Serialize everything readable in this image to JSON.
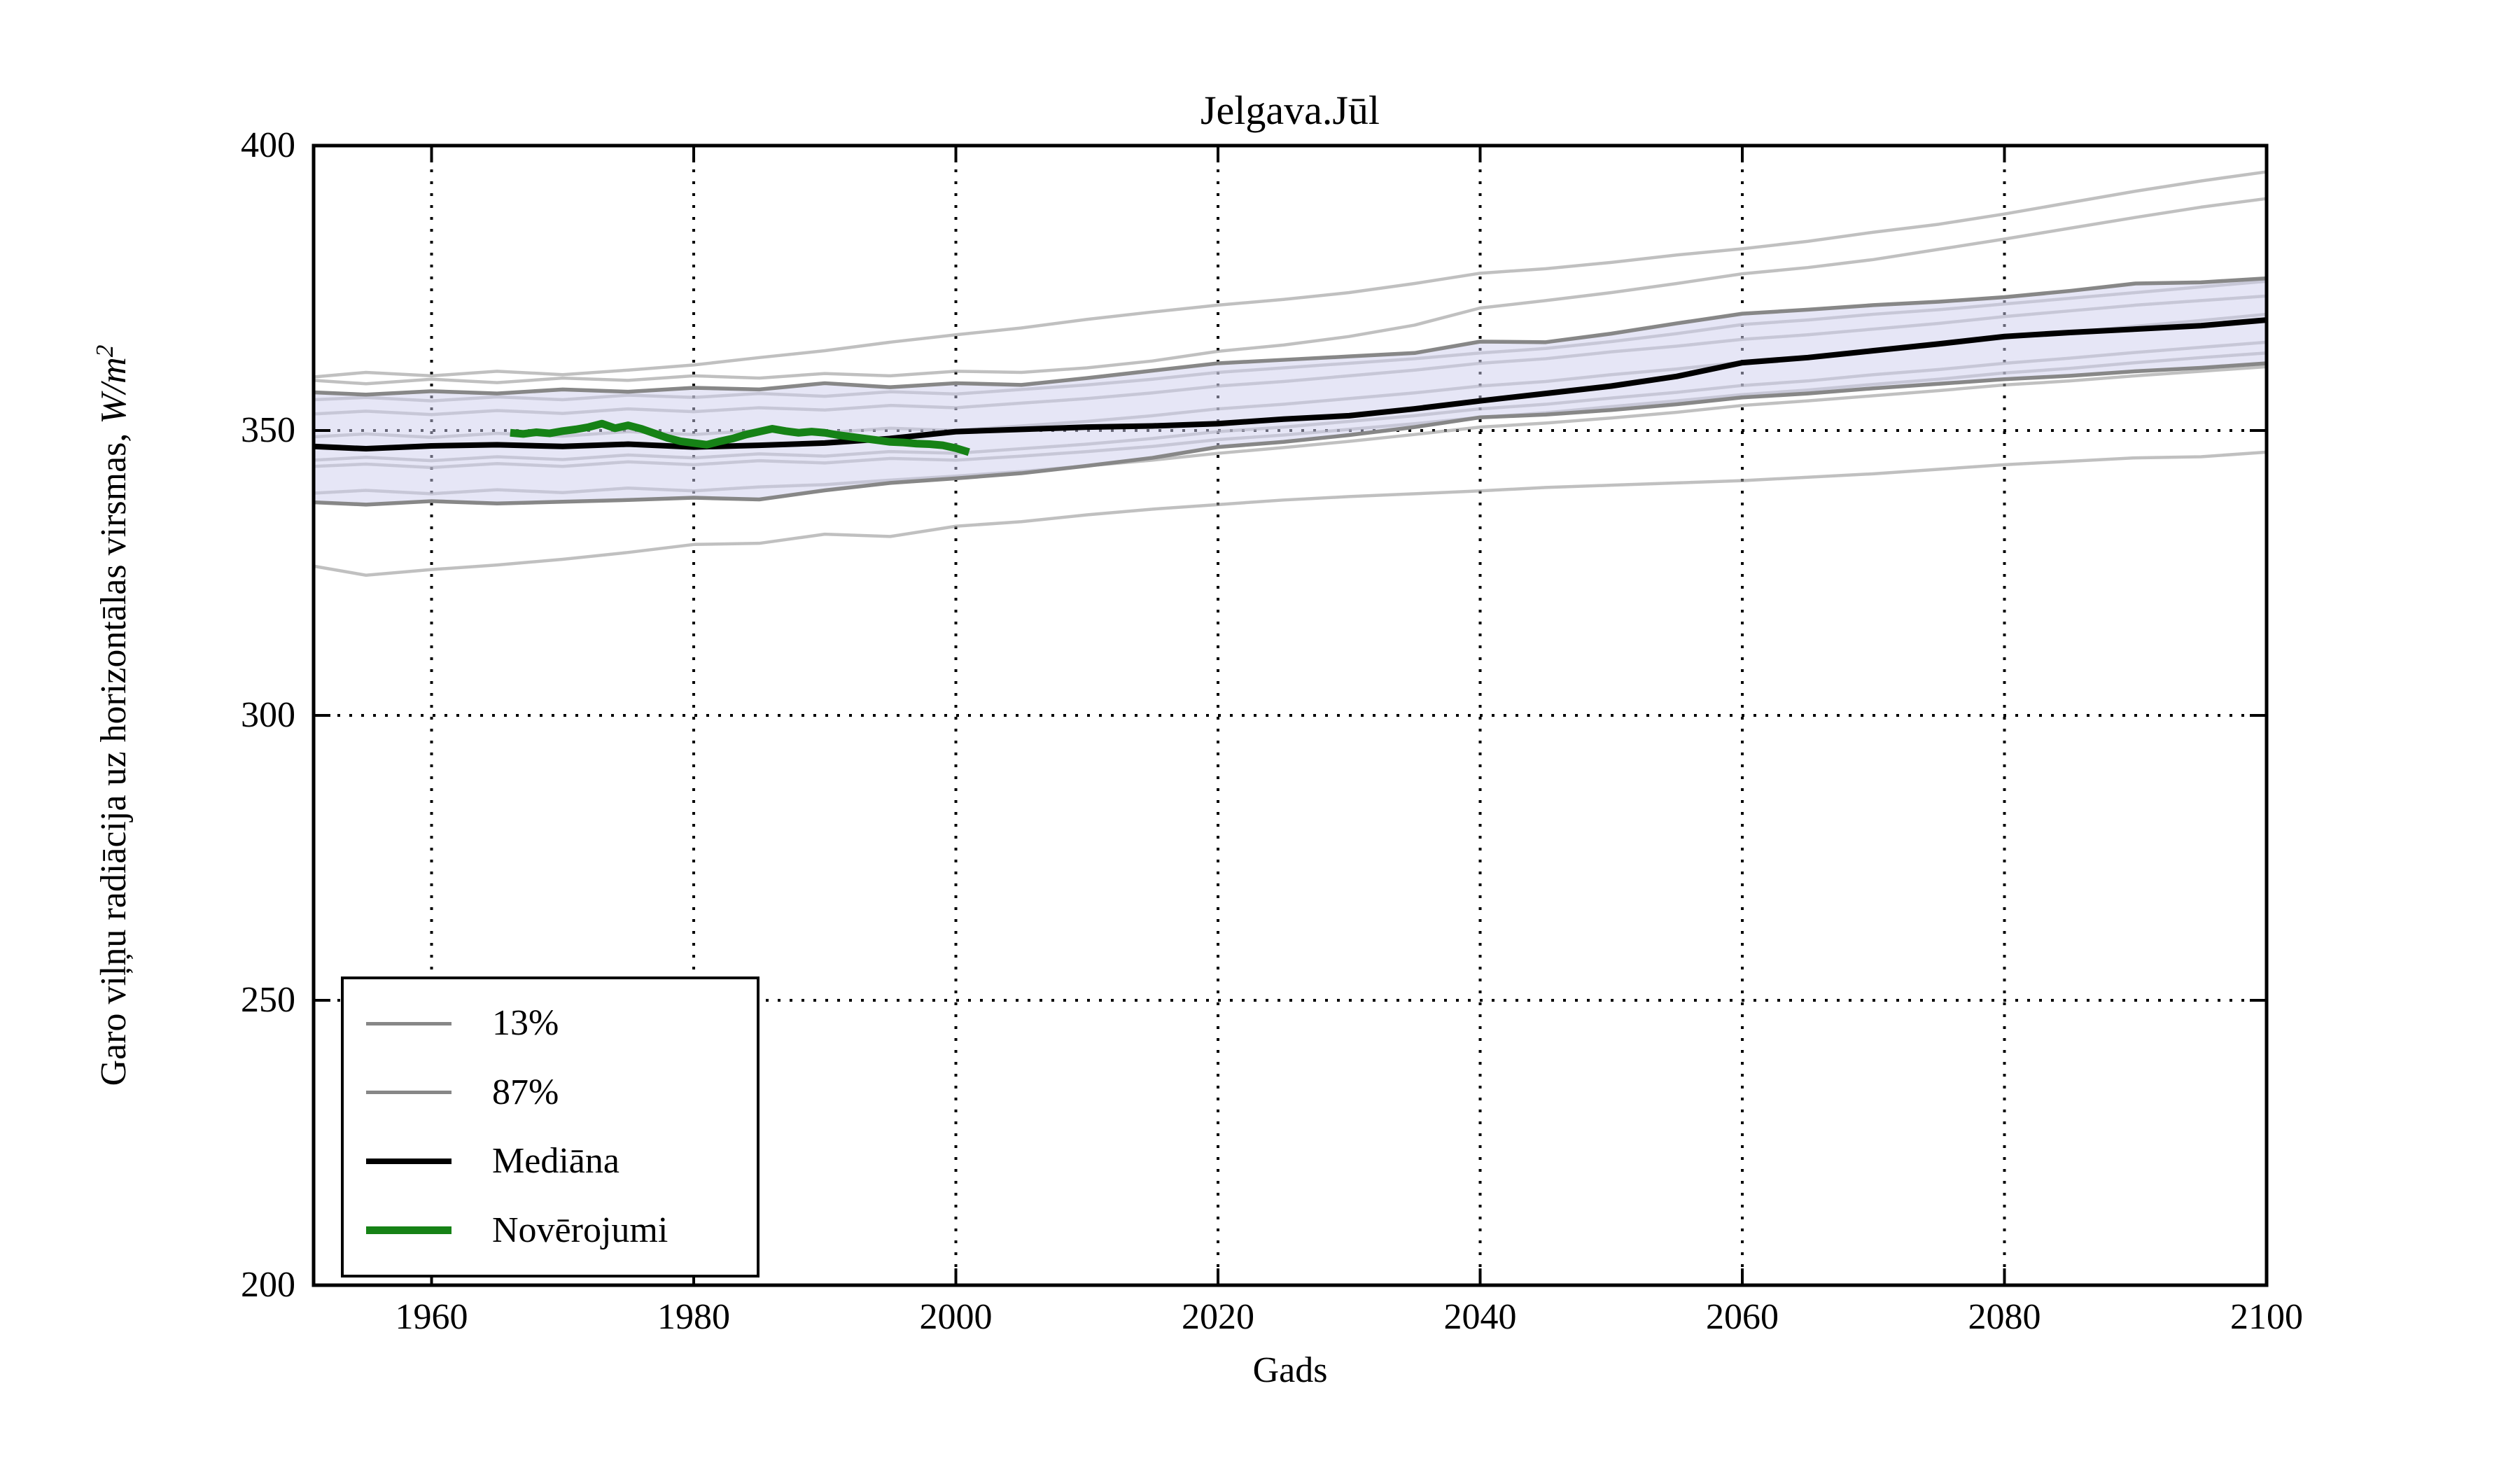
{
  "title": "Jelgava.Jūl",
  "axes": {
    "xlabel": "Gads",
    "ylabel_prefix": "Garo viļņu radiācija uz horizontālas virsmas, ",
    "ylabel_unit": "W/m",
    "ylabel_exp": "2",
    "x_ticks": [
      1960,
      1980,
      2000,
      2020,
      2040,
      2060,
      2080,
      2100
    ],
    "y_ticks": [
      200,
      250,
      300,
      350,
      400
    ],
    "xlim": [
      1951,
      2100
    ],
    "ylim": [
      200,
      400
    ],
    "grid": "dotted"
  },
  "legend": {
    "items": [
      {
        "label": "13%",
        "color": "#878787",
        "width": 5
      },
      {
        "label": "87%",
        "color": "#878787",
        "width": 5
      },
      {
        "label": "Mediāna",
        "color": "#000000",
        "width": 8
      },
      {
        "label": "Novērojumi",
        "color": "#168216",
        "width": 11
      }
    ]
  },
  "chart_data": {
    "type": "line",
    "title": "Jelgava.Jūl",
    "xlabel": "Gads",
    "ylabel": "Garo viļņu radiācija uz horizontālas virsmas, W/m2",
    "x": [
      1951,
      1955,
      1960,
      1965,
      1970,
      1975,
      1980,
      1985,
      1990,
      1995,
      2000,
      2005,
      2010,
      2015,
      2020,
      2025,
      2030,
      2035,
      2040,
      2045,
      2050,
      2055,
      2060,
      2065,
      2070,
      2075,
      2080,
      2085,
      2090,
      2095,
      2100
    ],
    "percentile_87": {
      "label": "87%",
      "color": "#878787",
      "values": [
        356.7,
        356.3,
        356.9,
        356.5,
        357.2,
        356.8,
        357.5,
        357.2,
        358.3,
        357.6,
        358.3,
        358.0,
        359.2,
        360.5,
        361.8,
        362.4,
        363.0,
        363.6,
        365.6,
        365.5,
        367.0,
        368.8,
        370.5,
        371.2,
        372.0,
        372.6,
        373.4,
        374.5,
        375.8,
        376.0,
        376.7
      ]
    },
    "percentile_13": {
      "label": "13%",
      "color": "#878787",
      "values": [
        337.4,
        337.0,
        337.6,
        337.2,
        337.5,
        337.8,
        338.2,
        337.9,
        339.5,
        340.8,
        341.6,
        342.5,
        343.8,
        345.2,
        347.1,
        348.0,
        349.2,
        350.6,
        352.3,
        352.8,
        353.6,
        354.6,
        355.8,
        356.5,
        357.4,
        358.2,
        359.0,
        359.6,
        360.4,
        361.0,
        361.8
      ]
    },
    "median": {
      "label": "Mediāna",
      "color": "#000000",
      "values": [
        347.2,
        346.8,
        347.3,
        347.5,
        347.2,
        347.6,
        347.1,
        347.4,
        347.8,
        348.6,
        349.8,
        350.2,
        350.6,
        350.8,
        351.2,
        352.0,
        352.6,
        353.8,
        355.2,
        356.5,
        357.8,
        359.5,
        361.9,
        362.8,
        364.0,
        365.2,
        366.5,
        367.2,
        367.8,
        368.4,
        369.4
      ]
    },
    "ensemble_runs": [
      {
        "values": [
          359.4,
          360.2,
          359.6,
          360.4,
          359.8,
          360.6,
          361.5,
          362.8,
          364.0,
          365.5,
          366.8,
          368.0,
          369.5,
          370.8,
          372.0,
          373.0,
          374.2,
          375.8,
          377.6,
          378.4,
          379.5,
          380.8,
          381.9,
          383.2,
          384.8,
          386.2,
          388.0,
          390.0,
          392.0,
          393.8,
          395.4
        ]
      },
      {
        "values": [
          358.8,
          358.2,
          359.0,
          358.4,
          359.2,
          358.8,
          359.6,
          359.2,
          360.0,
          359.6,
          360.4,
          360.2,
          361.0,
          362.2,
          363.9,
          365.0,
          366.5,
          368.5,
          371.5,
          372.8,
          374.2,
          375.8,
          377.5,
          378.6,
          380.0,
          381.8,
          383.6,
          385.5,
          387.4,
          389.2,
          390.7
        ]
      },
      {
        "values": [
          355.4,
          355.8,
          355.2,
          355.9,
          355.4,
          356.2,
          355.8,
          356.5,
          356.0,
          356.8,
          356.4,
          357.2,
          358.0,
          359.0,
          360.2,
          361.0,
          361.8,
          362.6,
          363.6,
          364.4,
          365.6,
          367.0,
          368.6,
          369.4,
          370.4,
          371.2,
          372.2,
          373.2,
          374.2,
          375.2,
          376.2
        ]
      },
      {
        "values": [
          352.9,
          353.4,
          352.8,
          353.5,
          353.0,
          353.8,
          353.3,
          354.0,
          353.6,
          354.4,
          354.0,
          354.8,
          355.6,
          356.6,
          357.8,
          358.6,
          359.6,
          360.6,
          361.8,
          362.6,
          363.8,
          364.8,
          366.0,
          366.8,
          367.8,
          368.8,
          370.0,
          371.0,
          372.0,
          372.8,
          373.6
        ]
      },
      {
        "values": [
          348.9,
          349.4,
          348.8,
          349.5,
          349.0,
          349.8,
          349.3,
          350.0,
          349.6,
          350.4,
          350.0,
          350.8,
          351.6,
          352.6,
          353.8,
          354.6,
          355.6,
          356.6,
          357.8,
          358.6,
          359.8,
          360.8,
          362.0,
          362.9,
          364.0,
          365.0,
          366.2,
          367.2,
          368.3,
          369.3,
          370.4
        ]
      },
      {
        "values": [
          344.8,
          345.3,
          344.7,
          345.4,
          344.9,
          345.7,
          345.2,
          345.9,
          345.5,
          346.3,
          346.0,
          346.8,
          347.6,
          348.6,
          349.8,
          350.6,
          351.6,
          352.6,
          353.8,
          354.6,
          355.7,
          356.7,
          357.9,
          358.7,
          359.8,
          360.7,
          361.8,
          362.7,
          363.7,
          364.6,
          365.5
        ]
      },
      {
        "values": [
          343.7,
          344.1,
          343.5,
          344.2,
          343.7,
          344.5,
          344.0,
          344.7,
          344.3,
          345.1,
          344.8,
          345.5,
          346.3,
          347.2,
          348.4,
          349.2,
          350.2,
          351.2,
          352.3,
          353.1,
          354.2,
          355.2,
          356.3,
          357.1,
          358.1,
          359.0,
          360.1,
          360.9,
          361.9,
          362.8,
          363.6
        ]
      },
      {
        "values": [
          339.0,
          339.5,
          338.9,
          339.6,
          339.1,
          339.9,
          339.4,
          340.1,
          340.5,
          341.3,
          342.0,
          342.8,
          343.8,
          344.8,
          346.0,
          347.0,
          348.1,
          349.3,
          350.6,
          351.3,
          352.2,
          353.2,
          354.4,
          355.2,
          356.1,
          357.0,
          358.0,
          358.7,
          359.6,
          360.4,
          361.2
        ]
      },
      {
        "values": [
          326.2,
          324.6,
          325.6,
          326.4,
          327.4,
          328.6,
          330.0,
          330.2,
          331.8,
          331.4,
          333.2,
          334.0,
          335.2,
          336.2,
          337.0,
          337.8,
          338.4,
          338.9,
          339.4,
          340.0,
          340.4,
          340.8,
          341.2,
          341.8,
          342.4,
          343.2,
          344.0,
          344.6,
          345.2,
          345.4,
          346.2
        ]
      }
    ],
    "observations": {
      "label": "Novērojumi",
      "color": "#168216",
      "x": [
        1966,
        1967,
        1968,
        1969,
        1970,
        1971,
        1972,
        1973,
        1974,
        1975,
        1976,
        1977,
        1978,
        1979,
        1980,
        1981,
        1982,
        1983,
        1984,
        1985,
        1986,
        1987,
        1988,
        1989,
        1990,
        1991,
        1992,
        1993,
        1994,
        1995,
        1996,
        1997,
        1998,
        1999,
        2000,
        2001
      ],
      "values": [
        349.6,
        349.4,
        349.7,
        349.5,
        349.9,
        350.2,
        350.6,
        351.2,
        350.4,
        350.9,
        350.3,
        349.5,
        348.7,
        348.1,
        347.8,
        347.5,
        348.1,
        348.6,
        349.3,
        349.8,
        350.3,
        349.9,
        349.6,
        349.8,
        349.6,
        349.2,
        348.9,
        348.6,
        348.3,
        348.0,
        347.9,
        347.7,
        347.6,
        347.4,
        346.9,
        346.2
      ]
    },
    "band_fill": "#cdcdee",
    "ensemble_color": "#969696",
    "legend_position": "lower-left"
  }
}
